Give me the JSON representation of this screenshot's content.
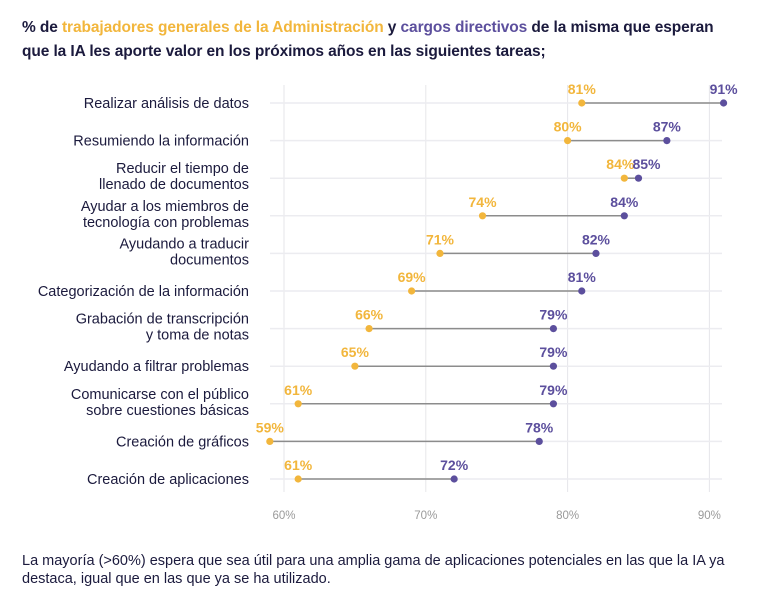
{
  "title": {
    "prefix": "% de ",
    "series1_text": "trabajadores generales de la Administración",
    "middle": " y ",
    "series2_text": "cargos directivos",
    "suffix": " de la misma que esperan que la IA les aporte valor en los próximos años en las siguientes tareas;"
  },
  "footer": "La mayoría (>60%) espera que sea útil para una amplia gama de aplicaciones potenciales en las que la IA ya destaca, igual que en las que ya se ha utilizado.",
  "colors": {
    "workers": "#f2b63c",
    "managers": "#5c4f9d",
    "connector": "#8c8c8c",
    "grid": "#e6e6ea",
    "text": "#1b1a3d"
  },
  "chart_data": {
    "type": "dumbbell",
    "title": "% de trabajadores generales de la Administración y cargos directivos de la misma que esperan que la IA les aporte valor en los próximos años en las siguientes tareas;",
    "xlabel": "",
    "ylabel": "",
    "xlim": [
      59,
      91
    ],
    "x_ticks": [
      60,
      70,
      80,
      90
    ],
    "x_tick_labels": [
      "60%",
      "70%",
      "80%",
      "90%"
    ],
    "grid": true,
    "categories": [
      [
        "Realizar análisis de datos"
      ],
      [
        "Resumiendo la información"
      ],
      [
        "Reducir el tiempo de",
        "llenado de documentos"
      ],
      [
        "Ayudar a los miembros de",
        "tecnología con problemas"
      ],
      [
        "Ayudando a traducir",
        "documentos"
      ],
      [
        "Categorización de la información"
      ],
      [
        "Grabación de transcripción",
        "y toma de notas"
      ],
      [
        "Ayudando a filtrar problemas"
      ],
      [
        "Comunicarse con el público",
        "sobre cuestiones básicas"
      ],
      [
        "Creación de gráficos"
      ],
      [
        "Creación de aplicaciones"
      ]
    ],
    "series": [
      {
        "name": "trabajadores generales de la Administración",
        "color": "#f2b63c",
        "values": [
          81,
          80,
          84,
          74,
          71,
          69,
          66,
          65,
          61,
          59,
          61
        ],
        "labels": [
          "81%",
          "80%",
          "84%",
          "74%",
          "71%",
          "69%",
          "66%",
          "65%",
          "61%",
          "59%",
          "61%"
        ]
      },
      {
        "name": "cargos directivos",
        "color": "#5c4f9d",
        "values": [
          91,
          87,
          85,
          84,
          82,
          81,
          79,
          79,
          79,
          78,
          72
        ],
        "labels": [
          "91%",
          "87%",
          "85%",
          "84%",
          "82%",
          "81%",
          "79%",
          "79%",
          "79%",
          "78%",
          "72%"
        ]
      }
    ]
  }
}
